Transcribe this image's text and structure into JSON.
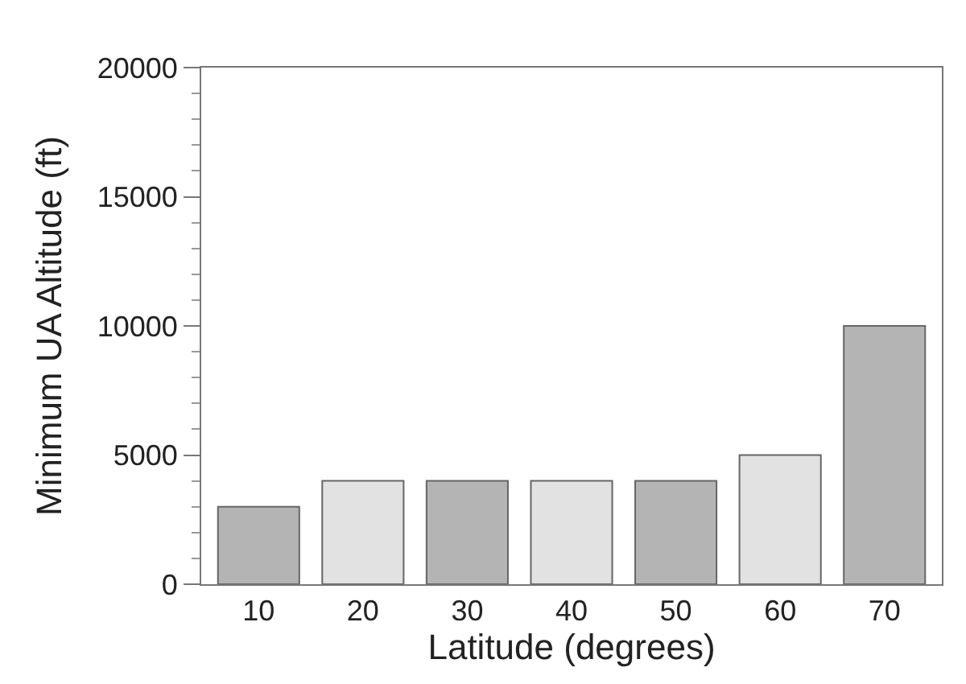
{
  "chart_data": {
    "type": "bar",
    "xlabel": "Latitude (degrees)",
    "ylabel": "Minimum UA Altitude (ft)",
    "categories": [
      "10",
      "20",
      "30",
      "40",
      "50",
      "60",
      "70"
    ],
    "values": [
      3000,
      4000,
      4000,
      4000,
      4000,
      5000,
      10000
    ],
    "colors": [
      "#b4b4b4",
      "#e2e2e2",
      "#b4b4b4",
      "#e2e2e2",
      "#b4b4b4",
      "#e2e2e2",
      "#b4b4b4"
    ],
    "ylim": [
      0,
      20000
    ],
    "yticks": [
      0,
      5000,
      10000,
      15000,
      20000
    ]
  }
}
